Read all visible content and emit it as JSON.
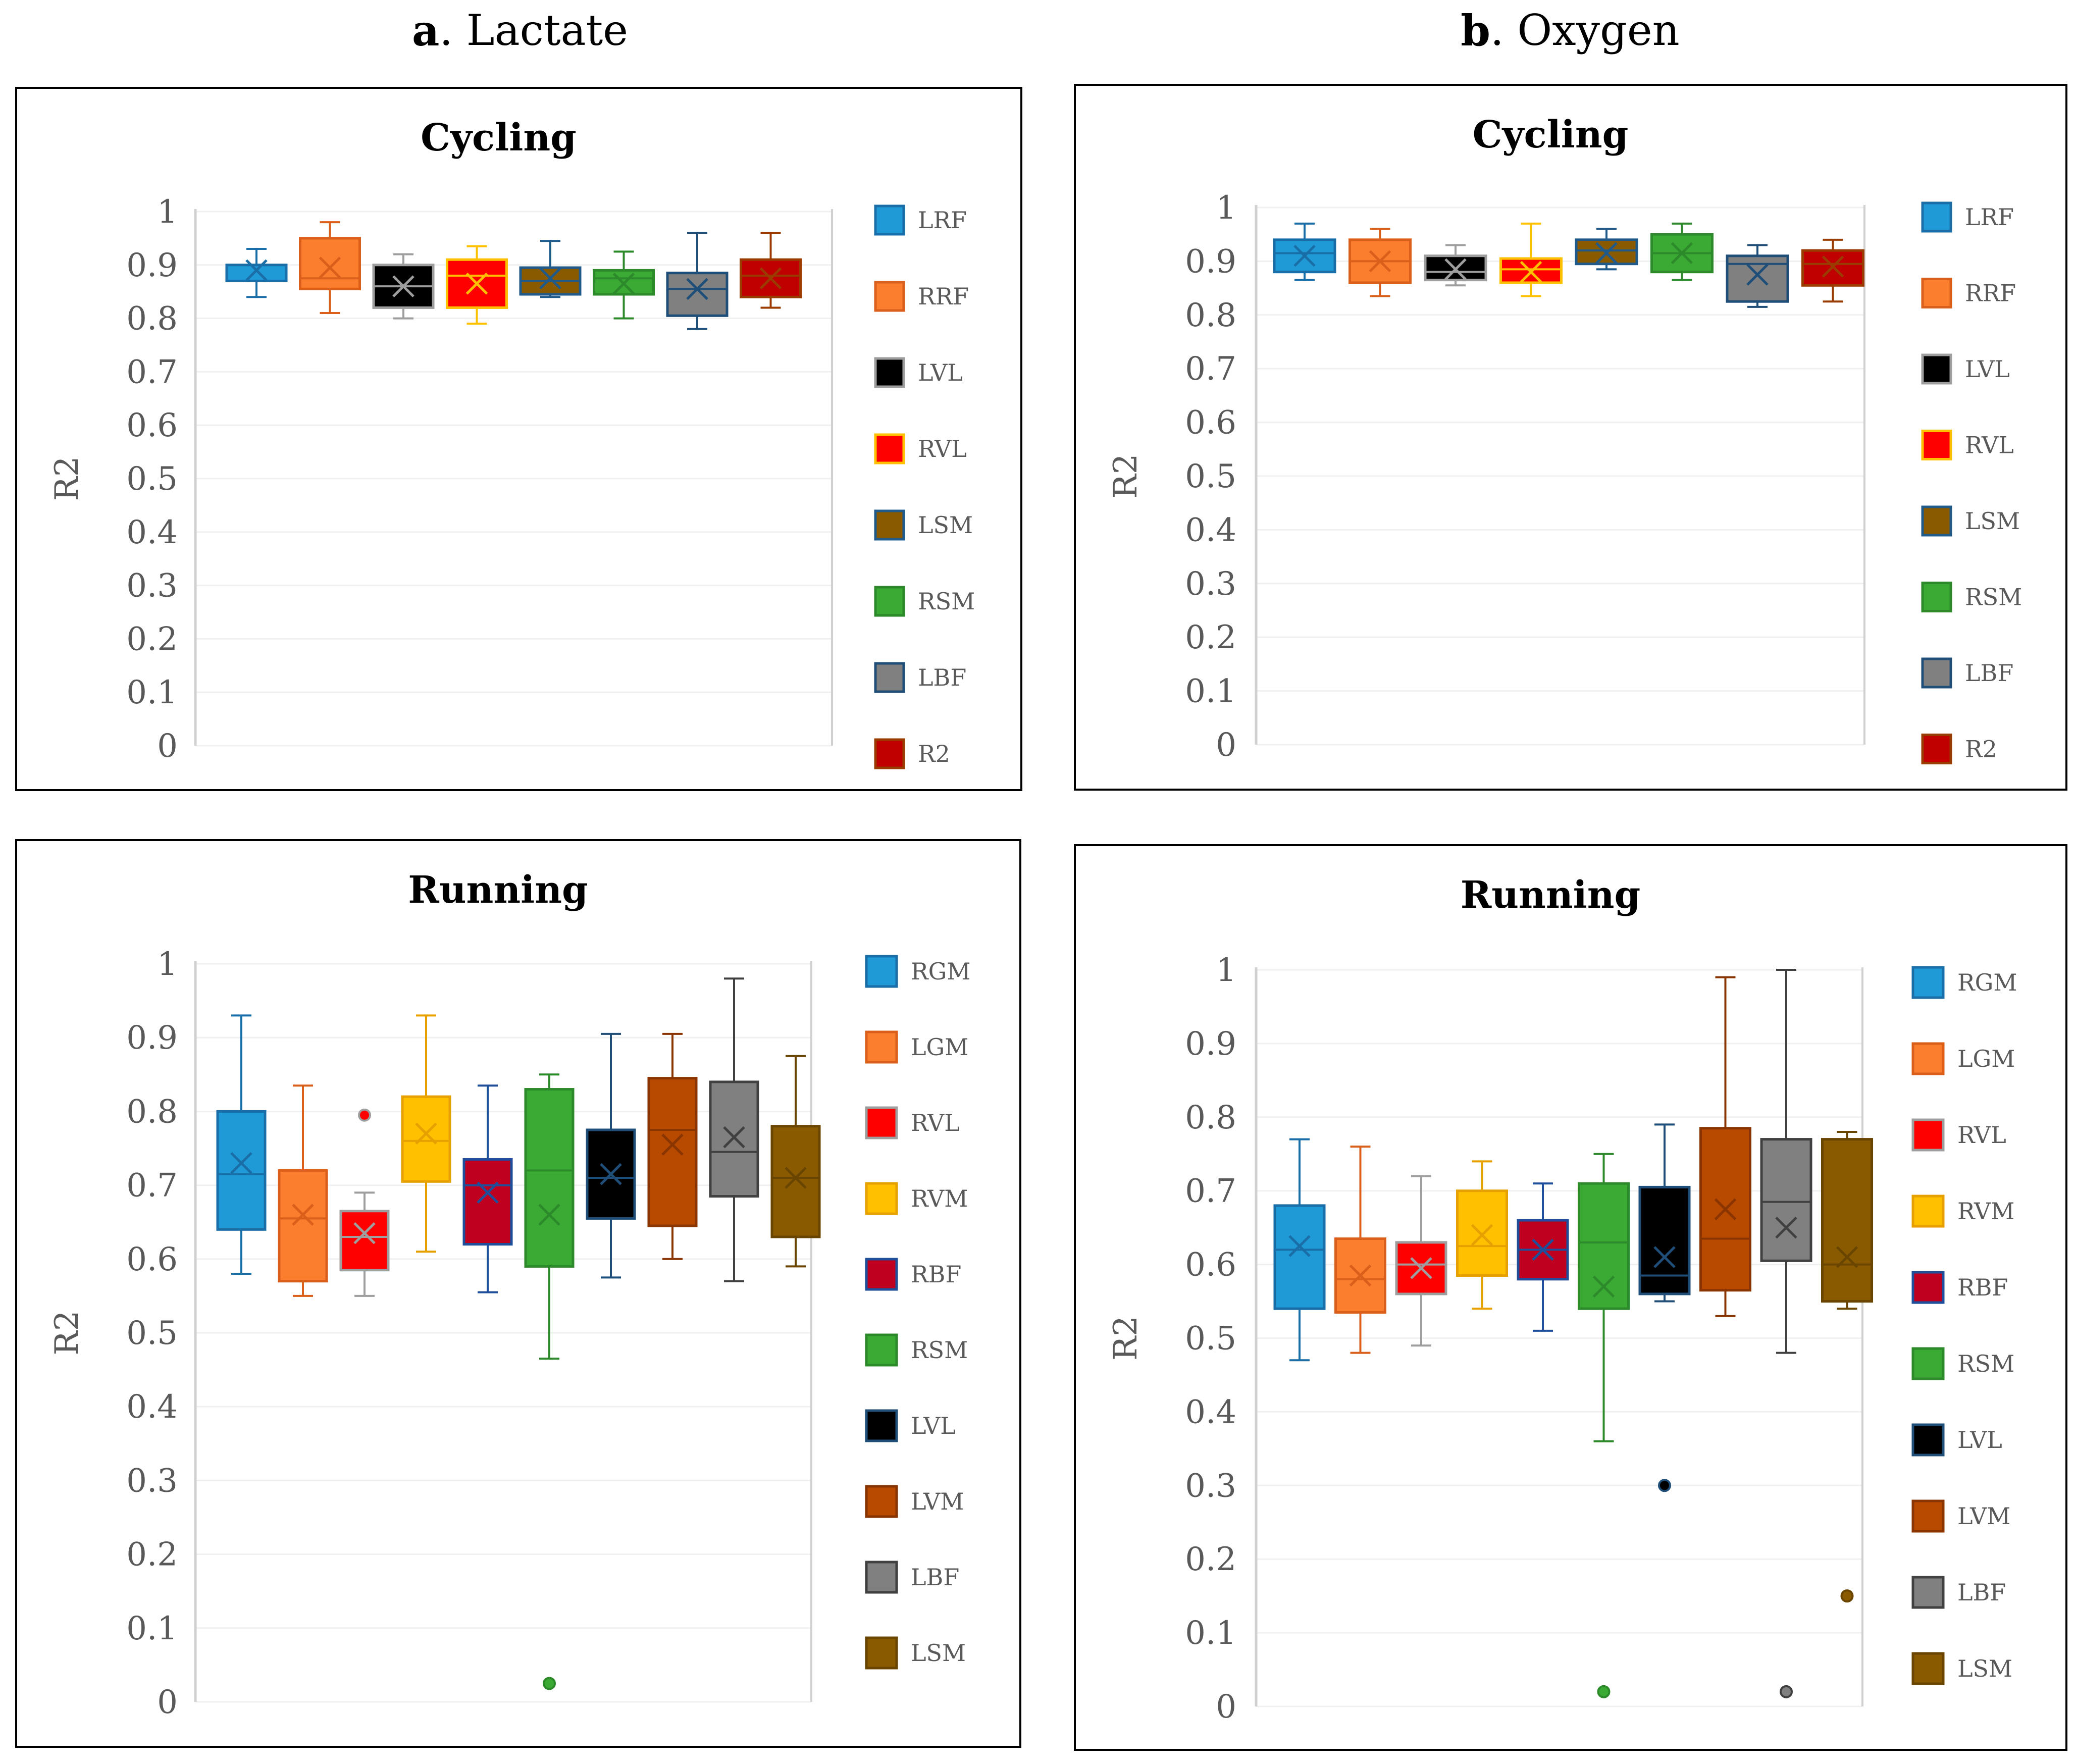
{
  "headings": [
    {
      "letter": "a",
      "rest": ". Lactate"
    },
    {
      "letter": "b",
      "rest": ". Oxygen"
    }
  ],
  "colors": {
    "axis": "#d0d0d0",
    "grid": "#f0f0f0",
    "tick_text": "#595959"
  },
  "chart_data": [
    {
      "type": "box",
      "title": "Cycling",
      "ylabel": "R2",
      "ylim": [
        0,
        1
      ],
      "yticks": [
        "0",
        "0.1",
        "0.2",
        "0.3",
        "0.4",
        "0.5",
        "0.6",
        "0.7",
        "0.8",
        "0.9",
        "1"
      ],
      "series": [
        {
          "name": "LRF",
          "fill": "#1f9ad6",
          "stroke": "#1a6ea8",
          "min": 0.84,
          "q1": 0.87,
          "median": 0.9,
          "q3": 0.9,
          "max": 0.93,
          "mean": 0.89,
          "outliers": []
        },
        {
          "name": "RRF",
          "fill": "#fb7d2e",
          "stroke": "#d95f1a",
          "min": 0.81,
          "q1": 0.855,
          "median": 0.875,
          "q3": 0.95,
          "max": 0.98,
          "mean": 0.895,
          "outliers": []
        },
        {
          "name": "LVL",
          "fill": "#000000",
          "stroke": "#9e9e9e",
          "min": 0.8,
          "q1": 0.82,
          "median": 0.86,
          "q3": 0.9,
          "max": 0.92,
          "mean": 0.86,
          "outliers": []
        },
        {
          "name": "RVL",
          "fill": "#ff0000",
          "stroke": "#ffc000",
          "min": 0.79,
          "q1": 0.82,
          "median": 0.88,
          "q3": 0.91,
          "max": 0.935,
          "mean": 0.865,
          "outliers": []
        },
        {
          "name": "LSM",
          "fill": "#8a5a00",
          "stroke": "#1f5a8a",
          "min": 0.84,
          "q1": 0.845,
          "median": 0.87,
          "q3": 0.895,
          "max": 0.945,
          "mean": 0.875,
          "outliers": []
        },
        {
          "name": "RSM",
          "fill": "#3aaa35",
          "stroke": "#2d8a2a",
          "min": 0.8,
          "q1": 0.845,
          "median": 0.875,
          "q3": 0.89,
          "max": 0.925,
          "mean": 0.865,
          "outliers": []
        },
        {
          "name": "LBF",
          "fill": "#808080",
          "stroke": "#1f4e79",
          "min": 0.78,
          "q1": 0.805,
          "median": 0.855,
          "q3": 0.885,
          "max": 0.96,
          "mean": 0.855,
          "outliers": []
        },
        {
          "name": "R2",
          "fill": "#c00000",
          "stroke": "#9a3b00",
          "min": 0.82,
          "q1": 0.84,
          "median": 0.88,
          "q3": 0.91,
          "max": 0.96,
          "mean": 0.875,
          "outliers": []
        }
      ]
    },
    {
      "type": "box",
      "title": "Cycling",
      "ylabel": "R2",
      "ylim": [
        0,
        1
      ],
      "yticks": [
        "0",
        "0.1",
        "0.2",
        "0.3",
        "0.4",
        "0.5",
        "0.6",
        "0.7",
        "0.8",
        "0.9",
        "1"
      ],
      "series": [
        {
          "name": "LRF",
          "fill": "#1f9ad6",
          "stroke": "#1a6ea8",
          "min": 0.865,
          "q1": 0.88,
          "median": 0.915,
          "q3": 0.94,
          "max": 0.97,
          "mean": 0.91,
          "outliers": []
        },
        {
          "name": "RRF",
          "fill": "#fb7d2e",
          "stroke": "#d95f1a",
          "min": 0.835,
          "q1": 0.86,
          "median": 0.9,
          "q3": 0.94,
          "max": 0.96,
          "mean": 0.9,
          "outliers": []
        },
        {
          "name": "LVL",
          "fill": "#000000",
          "stroke": "#9e9e9e",
          "min": 0.855,
          "q1": 0.865,
          "median": 0.88,
          "q3": 0.91,
          "max": 0.93,
          "mean": 0.885,
          "outliers": []
        },
        {
          "name": "RVL",
          "fill": "#ff0000",
          "stroke": "#ffc000",
          "min": 0.835,
          "q1": 0.86,
          "median": 0.885,
          "q3": 0.905,
          "max": 0.97,
          "mean": 0.88,
          "outliers": []
        },
        {
          "name": "LSM",
          "fill": "#8a5a00",
          "stroke": "#1f5a8a",
          "min": 0.885,
          "q1": 0.895,
          "median": 0.92,
          "q3": 0.94,
          "max": 0.96,
          "mean": 0.915,
          "outliers": []
        },
        {
          "name": "RSM",
          "fill": "#3aaa35",
          "stroke": "#2d8a2a",
          "min": 0.865,
          "q1": 0.88,
          "median": 0.915,
          "q3": 0.95,
          "max": 0.97,
          "mean": 0.915,
          "outliers": []
        },
        {
          "name": "LBF",
          "fill": "#808080",
          "stroke": "#1f4e79",
          "min": 0.815,
          "q1": 0.825,
          "median": 0.895,
          "q3": 0.91,
          "max": 0.93,
          "mean": 0.875,
          "outliers": []
        },
        {
          "name": "R2",
          "fill": "#c00000",
          "stroke": "#9a3b00",
          "min": 0.825,
          "q1": 0.855,
          "median": 0.895,
          "q3": 0.92,
          "max": 0.94,
          "mean": 0.89,
          "outliers": []
        }
      ]
    },
    {
      "type": "box",
      "title": "Running",
      "ylabel": "R2",
      "ylim": [
        0,
        1
      ],
      "yticks": [
        "0",
        "0.1",
        "0.2",
        "0.3",
        "0.4",
        "0.5",
        "0.6",
        "0.7",
        "0.8",
        "0.9",
        "1"
      ],
      "series": [
        {
          "name": "RGM",
          "fill": "#1f9ad6",
          "stroke": "#1a6ea8",
          "min": 0.58,
          "q1": 0.64,
          "median": 0.715,
          "q3": 0.8,
          "max": 0.93,
          "mean": 0.73,
          "outliers": []
        },
        {
          "name": "LGM",
          "fill": "#fb7d2e",
          "stroke": "#d95f1a",
          "min": 0.55,
          "q1": 0.57,
          "median": 0.655,
          "q3": 0.72,
          "max": 0.835,
          "mean": 0.66,
          "outliers": []
        },
        {
          "name": "RVL",
          "fill": "#ff0000",
          "stroke": "#9e9e9e",
          "min": 0.55,
          "q1": 0.585,
          "median": 0.63,
          "q3": 0.665,
          "max": 0.69,
          "mean": 0.635,
          "outliers": [
            0.795
          ]
        },
        {
          "name": "RVM",
          "fill": "#ffc000",
          "stroke": "#e6a000",
          "min": 0.61,
          "q1": 0.705,
          "median": 0.76,
          "q3": 0.82,
          "max": 0.93,
          "mean": 0.77,
          "outliers": []
        },
        {
          "name": "RBF",
          "fill": "#c0001f",
          "stroke": "#1f4e9a",
          "min": 0.555,
          "q1": 0.62,
          "median": 0.7,
          "q3": 0.735,
          "max": 0.835,
          "mean": 0.69,
          "outliers": []
        },
        {
          "name": "RSM",
          "fill": "#3aaa35",
          "stroke": "#2d8a2a",
          "min": 0.465,
          "q1": 0.59,
          "median": 0.72,
          "q3": 0.83,
          "max": 0.85,
          "mean": 0.66,
          "outliers": [
            0.025
          ]
        },
        {
          "name": "LVL",
          "fill": "#000000",
          "stroke": "#1f4e79",
          "min": 0.575,
          "q1": 0.655,
          "median": 0.71,
          "q3": 0.775,
          "max": 0.905,
          "mean": 0.715,
          "outliers": []
        },
        {
          "name": "LVM",
          "fill": "#b84a00",
          "stroke": "#8a3500",
          "min": 0.6,
          "q1": 0.645,
          "median": 0.775,
          "q3": 0.845,
          "max": 0.905,
          "mean": 0.755,
          "outliers": []
        },
        {
          "name": "LBF",
          "fill": "#808080",
          "stroke": "#404040",
          "min": 0.57,
          "q1": 0.685,
          "median": 0.745,
          "q3": 0.84,
          "max": 0.98,
          "mean": 0.765,
          "outliers": []
        },
        {
          "name": "LSM",
          "fill": "#8a5a00",
          "stroke": "#6a4500",
          "min": 0.59,
          "q1": 0.63,
          "median": 0.71,
          "q3": 0.78,
          "max": 0.875,
          "mean": 0.71,
          "outliers": []
        }
      ]
    },
    {
      "type": "box",
      "title": "Running",
      "ylabel": "R2",
      "ylim": [
        0,
        1
      ],
      "yticks": [
        "0",
        "0.1",
        "0.2",
        "0.3",
        "0.4",
        "0.5",
        "0.6",
        "0.7",
        "0.8",
        "0.9",
        "1"
      ],
      "series": [
        {
          "name": "RGM",
          "fill": "#1f9ad6",
          "stroke": "#1a6ea8",
          "min": 0.47,
          "q1": 0.54,
          "median": 0.62,
          "q3": 0.68,
          "max": 0.77,
          "mean": 0.625,
          "outliers": []
        },
        {
          "name": "LGM",
          "fill": "#fb7d2e",
          "stroke": "#d95f1a",
          "min": 0.48,
          "q1": 0.535,
          "median": 0.58,
          "q3": 0.635,
          "max": 0.76,
          "mean": 0.585,
          "outliers": []
        },
        {
          "name": "RVL",
          "fill": "#ff0000",
          "stroke": "#9e9e9e",
          "min": 0.49,
          "q1": 0.56,
          "median": 0.6,
          "q3": 0.63,
          "max": 0.72,
          "mean": 0.595,
          "outliers": []
        },
        {
          "name": "RVM",
          "fill": "#ffc000",
          "stroke": "#e6a000",
          "min": 0.54,
          "q1": 0.585,
          "median": 0.625,
          "q3": 0.7,
          "max": 0.74,
          "mean": 0.64,
          "outliers": []
        },
        {
          "name": "RBF",
          "fill": "#c0001f",
          "stroke": "#1f4e9a",
          "min": 0.51,
          "q1": 0.58,
          "median": 0.62,
          "q3": 0.66,
          "max": 0.71,
          "mean": 0.62,
          "outliers": []
        },
        {
          "name": "RSM",
          "fill": "#3aaa35",
          "stroke": "#2d8a2a",
          "min": 0.36,
          "q1": 0.54,
          "median": 0.63,
          "q3": 0.71,
          "max": 0.75,
          "mean": 0.57,
          "outliers": [
            0.02
          ]
        },
        {
          "name": "LVL",
          "fill": "#000000",
          "stroke": "#1f4e79",
          "min": 0.55,
          "q1": 0.56,
          "median": 0.585,
          "q3": 0.705,
          "max": 0.79,
          "mean": 0.61,
          "outliers": [
            0.3
          ]
        },
        {
          "name": "LVM",
          "fill": "#b84a00",
          "stroke": "#8a3500",
          "min": 0.53,
          "q1": 0.565,
          "median": 0.635,
          "q3": 0.785,
          "max": 0.99,
          "mean": 0.675,
          "outliers": []
        },
        {
          "name": "LBF",
          "fill": "#808080",
          "stroke": "#404040",
          "min": 0.48,
          "q1": 0.605,
          "median": 0.685,
          "q3": 0.77,
          "max": 1.0,
          "mean": 0.65,
          "outliers": [
            0.02
          ]
        },
        {
          "name": "LSM",
          "fill": "#8a5a00",
          "stroke": "#6a4500",
          "min": 0.54,
          "q1": 0.55,
          "median": 0.6,
          "q3": 0.77,
          "max": 0.78,
          "mean": 0.61,
          "outliers": [
            0.15
          ]
        }
      ]
    }
  ]
}
